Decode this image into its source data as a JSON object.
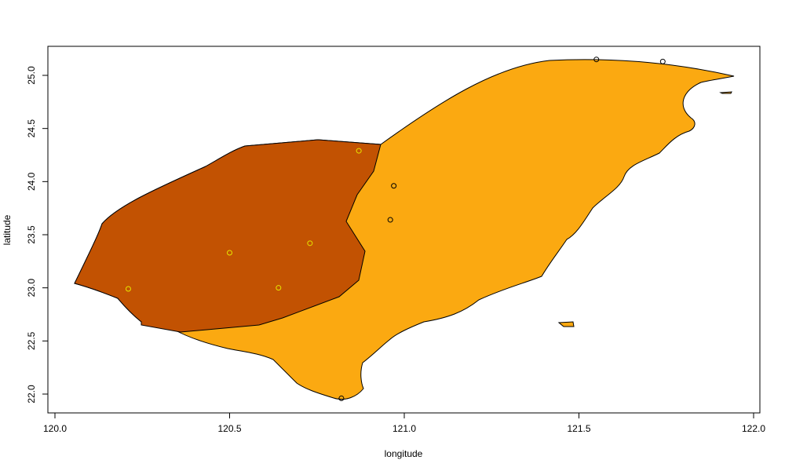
{
  "map": {
    "xlabel": "longitude",
    "ylabel": "latitude",
    "xlim": [
      120.0,
      122.0
    ],
    "ylim": [
      22.0,
      25.0
    ],
    "x_ticks": [
      120.0,
      120.5,
      121.0,
      121.5,
      122.0
    ],
    "y_ticks": [
      22.0,
      22.5,
      23.0,
      23.5,
      24.0,
      24.5,
      25.0
    ],
    "x_tick_labels": [
      "120.0",
      "120.5",
      "121.0",
      "121.5",
      "122.0"
    ],
    "y_tick_labels": [
      "22.0",
      "22.5",
      "23.0",
      "23.5",
      "24.0",
      "24.5",
      "25.0"
    ],
    "colors": {
      "land": "#FBA911",
      "region": "#C25202",
      "outline": "#000000",
      "western_points": "#E6E600",
      "eastern_points": "#000000"
    },
    "western_points": [
      {
        "lon": 120.21,
        "lat": 22.99
      },
      {
        "lon": 120.5,
        "lat": 23.33
      },
      {
        "lon": 120.64,
        "lat": 23.0
      },
      {
        "lon": 120.73,
        "lat": 23.42
      },
      {
        "lon": 120.87,
        "lat": 24.29
      }
    ],
    "eastern_points": [
      {
        "lon": 120.97,
        "lat": 23.96
      },
      {
        "lon": 120.96,
        "lat": 23.64
      },
      {
        "lon": 121.55,
        "lat": 25.15
      },
      {
        "lon": 121.74,
        "lat": 25.13
      },
      {
        "lon": 120.82,
        "lat": 21.96
      }
    ]
  }
}
